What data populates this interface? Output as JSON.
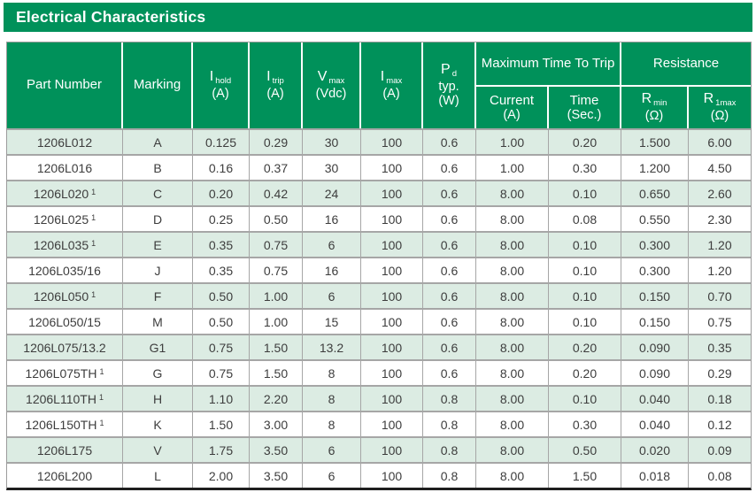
{
  "title": "Electrical Characteristics",
  "colors": {
    "brand_green": "#00915a",
    "row_alt_green": "#dcece3",
    "grid_gray": "#a6a6a6",
    "outer_gray": "#9c9c9c",
    "bottom_bar": "#1f1f1f",
    "data_text": "#3d3d3d"
  },
  "header": {
    "part": "Part Number",
    "marking": "Marking",
    "ihold": {
      "sym": "I",
      "sub": "hold",
      "unit": "(A)"
    },
    "itrip": {
      "sym": "I",
      "sub": "trip",
      "unit": "(A)"
    },
    "vmax": {
      "sym": "V",
      "sub": "max",
      "unit": "(Vdc)"
    },
    "imax": {
      "sym": "I",
      "sub": "max",
      "unit": "(A)"
    },
    "pd": {
      "sym": "P",
      "sub": "d",
      "line2": "typ.",
      "unit": "(W)"
    },
    "trip_group": {
      "label": "Maximum Time To Trip",
      "current": {
        "label": "Current",
        "unit": "(A)"
      },
      "time": {
        "label": "Time",
        "unit": "(Sec.)"
      }
    },
    "resistance_group": {
      "label": "Resistance",
      "rmin": {
        "sym": "R",
        "sub": "min",
        "unit": "(Ω)"
      },
      "r1max": {
        "sym": "R",
        "sub": "1max",
        "unit": "(Ω)"
      }
    }
  },
  "table": {
    "column_order": [
      "part",
      "marking",
      "ihold",
      "itrip",
      "vmax",
      "imax",
      "pd",
      "current",
      "time",
      "rmin",
      "r1max"
    ],
    "rows": [
      {
        "part": "1206L012",
        "marking": "A",
        "ihold": "0.125",
        "itrip": "0.29",
        "vmax": "30",
        "imax": "100",
        "pd": "0.6",
        "current": "1.00",
        "time": "0.20",
        "rmin": "1.500",
        "r1max": "6.00"
      },
      {
        "part": "1206L016",
        "marking": "B",
        "ihold": "0.16",
        "itrip": "0.37",
        "vmax": "30",
        "imax": "100",
        "pd": "0.6",
        "current": "1.00",
        "time": "0.30",
        "rmin": "1.200",
        "r1max": "4.50"
      },
      {
        "part": "1206L020",
        "sup": "1",
        "marking": "C",
        "ihold": "0.20",
        "itrip": "0.42",
        "vmax": "24",
        "imax": "100",
        "pd": "0.6",
        "current": "8.00",
        "time": "0.10",
        "rmin": "0.650",
        "r1max": "2.60"
      },
      {
        "part": "1206L025",
        "sup": "1",
        "marking": "D",
        "ihold": "0.25",
        "itrip": "0.50",
        "vmax": "16",
        "imax": "100",
        "pd": "0.6",
        "current": "8.00",
        "time": "0.08",
        "rmin": "0.550",
        "r1max": "2.30"
      },
      {
        "part": "1206L035",
        "sup": "1",
        "marking": "E",
        "ihold": "0.35",
        "itrip": "0.75",
        "vmax": "6",
        "imax": "100",
        "pd": "0.6",
        "current": "8.00",
        "time": "0.10",
        "rmin": "0.300",
        "r1max": "1.20"
      },
      {
        "part": "1206L035/16",
        "marking": "J",
        "ihold": "0.35",
        "itrip": "0.75",
        "vmax": "16",
        "imax": "100",
        "pd": "0.6",
        "current": "8.00",
        "time": "0.10",
        "rmin": "0.300",
        "r1max": "1.20"
      },
      {
        "part": "1206L050",
        "sup": "1",
        "marking": "F",
        "ihold": "0.50",
        "itrip": "1.00",
        "vmax": "6",
        "imax": "100",
        "pd": "0.6",
        "current": "8.00",
        "time": "0.10",
        "rmin": "0.150",
        "r1max": "0.70"
      },
      {
        "part": "1206L050/15",
        "marking": "M",
        "ihold": "0.50",
        "itrip": "1.00",
        "vmax": "15",
        "imax": "100",
        "pd": "0.6",
        "current": "8.00",
        "time": "0.10",
        "rmin": "0.150",
        "r1max": "0.75"
      },
      {
        "part": "1206L075/13.2",
        "marking": "G1",
        "ihold": "0.75",
        "itrip": "1.50",
        "vmax": "13.2",
        "imax": "100",
        "pd": "0.6",
        "current": "8.00",
        "time": "0.20",
        "rmin": "0.090",
        "r1max": "0.35"
      },
      {
        "part": "1206L075TH",
        "sup": "1",
        "marking": "G",
        "ihold": "0.75",
        "itrip": "1.50",
        "vmax": "8",
        "imax": "100",
        "pd": "0.6",
        "current": "8.00",
        "time": "0.20",
        "rmin": "0.090",
        "r1max": "0.29"
      },
      {
        "part": "1206L110TH",
        "sup": "1",
        "marking": "H",
        "ihold": "1.10",
        "itrip": "2.20",
        "vmax": "8",
        "imax": "100",
        "pd": "0.8",
        "current": "8.00",
        "time": "0.10",
        "rmin": "0.040",
        "r1max": "0.18"
      },
      {
        "part": "1206L150TH",
        "sup": "1",
        "marking": "K",
        "ihold": "1.50",
        "itrip": "3.00",
        "vmax": "8",
        "imax": "100",
        "pd": "0.8",
        "current": "8.00",
        "time": "0.30",
        "rmin": "0.040",
        "r1max": "0.12"
      },
      {
        "part": "1206L175",
        "marking": "V",
        "ihold": "1.75",
        "itrip": "3.50",
        "vmax": "6",
        "imax": "100",
        "pd": "0.8",
        "current": "8.00",
        "time": "0.50",
        "rmin": "0.020",
        "r1max": "0.09"
      },
      {
        "part": "1206L200",
        "marking": "L",
        "ihold": "2.00",
        "itrip": "3.50",
        "vmax": "6",
        "imax": "100",
        "pd": "0.8",
        "current": "8.00",
        "time": "1.50",
        "rmin": "0.018",
        "r1max": "0.08"
      }
    ]
  }
}
